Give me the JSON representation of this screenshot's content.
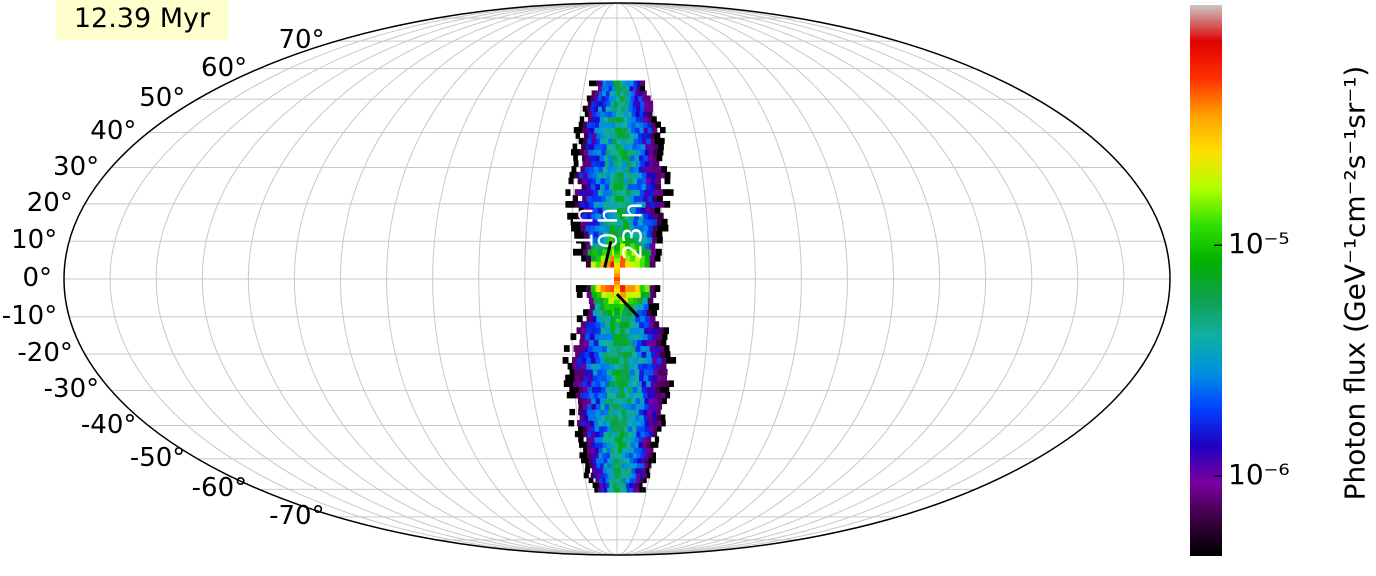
{
  "badge": {
    "time": "12.39 Myr"
  },
  "chart_data": {
    "type": "heatmap",
    "projection": "mollweide",
    "grid": true,
    "lat_tick_labels": [
      "70°",
      "60°",
      "50°",
      "40°",
      "30°",
      "20°",
      "10°",
      "0°",
      "-10°",
      "-20°",
      "-30°",
      "-40°",
      "-50°",
      "-60°",
      "-70°"
    ],
    "lat_values": [
      70,
      60,
      50,
      40,
      30,
      20,
      10,
      0,
      -10,
      -20,
      -30,
      -40,
      -50,
      -60,
      -70
    ],
    "lon_tick_labels": [
      "1 h",
      "0 h",
      "23 h"
    ],
    "colorbar": {
      "label": "Photon flux (GeV⁻¹cm⁻²s⁻¹sr⁻¹)",
      "scale": "log",
      "range": [
        4.5e-07,
        0.00011
      ],
      "tick_values": [
        1e-06,
        1e-05
      ],
      "tick_labels": [
        "10⁻⁶",
        "10⁻⁵"
      ],
      "colormap": [
        "#000000",
        "#3a0040",
        "#7a00a0",
        "#2000c0",
        "#0040ff",
        "#0090e0",
        "#10b0a0",
        "#10a050",
        "#00b000",
        "#30e000",
        "#b0ff00",
        "#ffe000",
        "#ffa000",
        "#ff3000",
        "#e00000",
        "#c8c8c8"
      ]
    },
    "emission": {
      "description_free": true,
      "north_lobe_lat": [
        3,
        56
      ],
      "south_lobe_lat": [
        -62,
        -3
      ],
      "peak_flux": 0.00011,
      "min_flux": 4.5e-07
    }
  }
}
